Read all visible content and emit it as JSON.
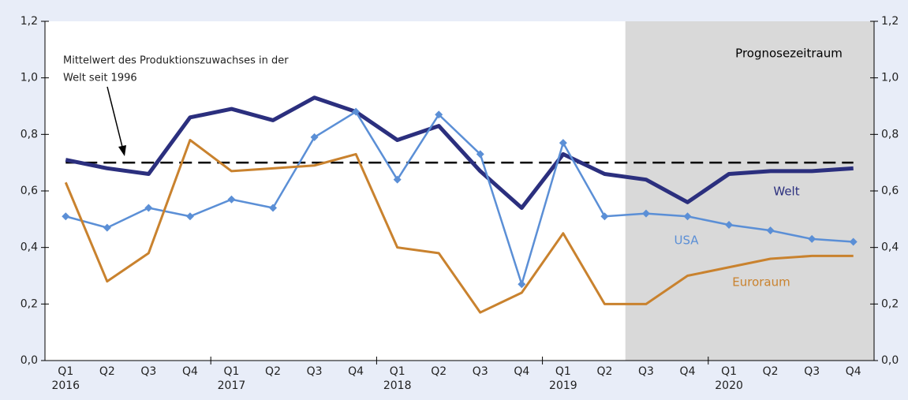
{
  "chart_data": {
    "type": "line",
    "categories": [
      "Q1",
      "Q2",
      "Q3",
      "Q4",
      "Q1",
      "Q2",
      "Q3",
      "Q4",
      "Q1",
      "Q2",
      "Q3",
      "Q4",
      "Q1",
      "Q2",
      "Q3",
      "Q4",
      "Q1",
      "Q2",
      "Q3",
      "Q4"
    ],
    "years": [
      "2016",
      "2017",
      "2018",
      "2019",
      "2020"
    ],
    "series": [
      {
        "name": "Welt",
        "color": "#2b2f7e",
        "values": [
          0.71,
          0.68,
          0.66,
          0.86,
          0.89,
          0.85,
          0.93,
          0.88,
          0.78,
          0.83,
          0.67,
          0.54,
          0.73,
          0.66,
          0.64,
          0.56,
          0.66,
          0.67,
          0.67,
          0.68
        ]
      },
      {
        "name": "USA",
        "color": "#5b8fd6",
        "marker": "diamond",
        "values": [
          0.51,
          0.47,
          0.54,
          0.51,
          0.57,
          0.54,
          0.79,
          0.88,
          0.64,
          0.87,
          0.73,
          0.27,
          0.77,
          0.51,
          0.52,
          0.51,
          0.48,
          0.46,
          0.43,
          0.42
        ]
      },
      {
        "name": "Euroraum",
        "color": "#c9822e",
        "values": [
          0.63,
          0.28,
          0.38,
          0.78,
          0.67,
          0.68,
          0.69,
          0.73,
          0.4,
          0.38,
          0.17,
          0.24,
          0.45,
          0.2,
          0.2,
          0.3,
          0.33,
          0.36,
          0.37,
          0.37
        ]
      }
    ],
    "reference_line": {
      "value": 0.7,
      "label": [
        "Mittelwert des Produktionszuwachses in der",
        "Welt seit 1996"
      ]
    },
    "forecast_label": "Prognosezeitraum",
    "ylim": [
      0,
      1.2
    ],
    "yticks": [
      {
        "value": 0,
        "label": "0,0"
      },
      {
        "value": 0.2,
        "label": "0,2"
      },
      {
        "value": 0.4,
        "label": "0,4"
      },
      {
        "value": 0.6,
        "label": "0,6"
      },
      {
        "value": 0.8,
        "label": "0,8"
      },
      {
        "value": 1.0,
        "label": "1,0"
      },
      {
        "value": 1.2,
        "label": "1,2"
      }
    ],
    "y2lim": [
      0,
      1.2
    ],
    "y2ticks": [
      {
        "value": 0,
        "label": "0,0"
      },
      {
        "value": 0.2,
        "label": "0,2"
      },
      {
        "value": 0.4,
        "label": "0,4"
      },
      {
        "value": 0.6,
        "label": "0,6"
      },
      {
        "value": 0.8,
        "label": "0,8"
      },
      {
        "value": 1.0,
        "label": "1,0"
      },
      {
        "value": 1.2,
        "label": "1,2"
      }
    ]
  }
}
